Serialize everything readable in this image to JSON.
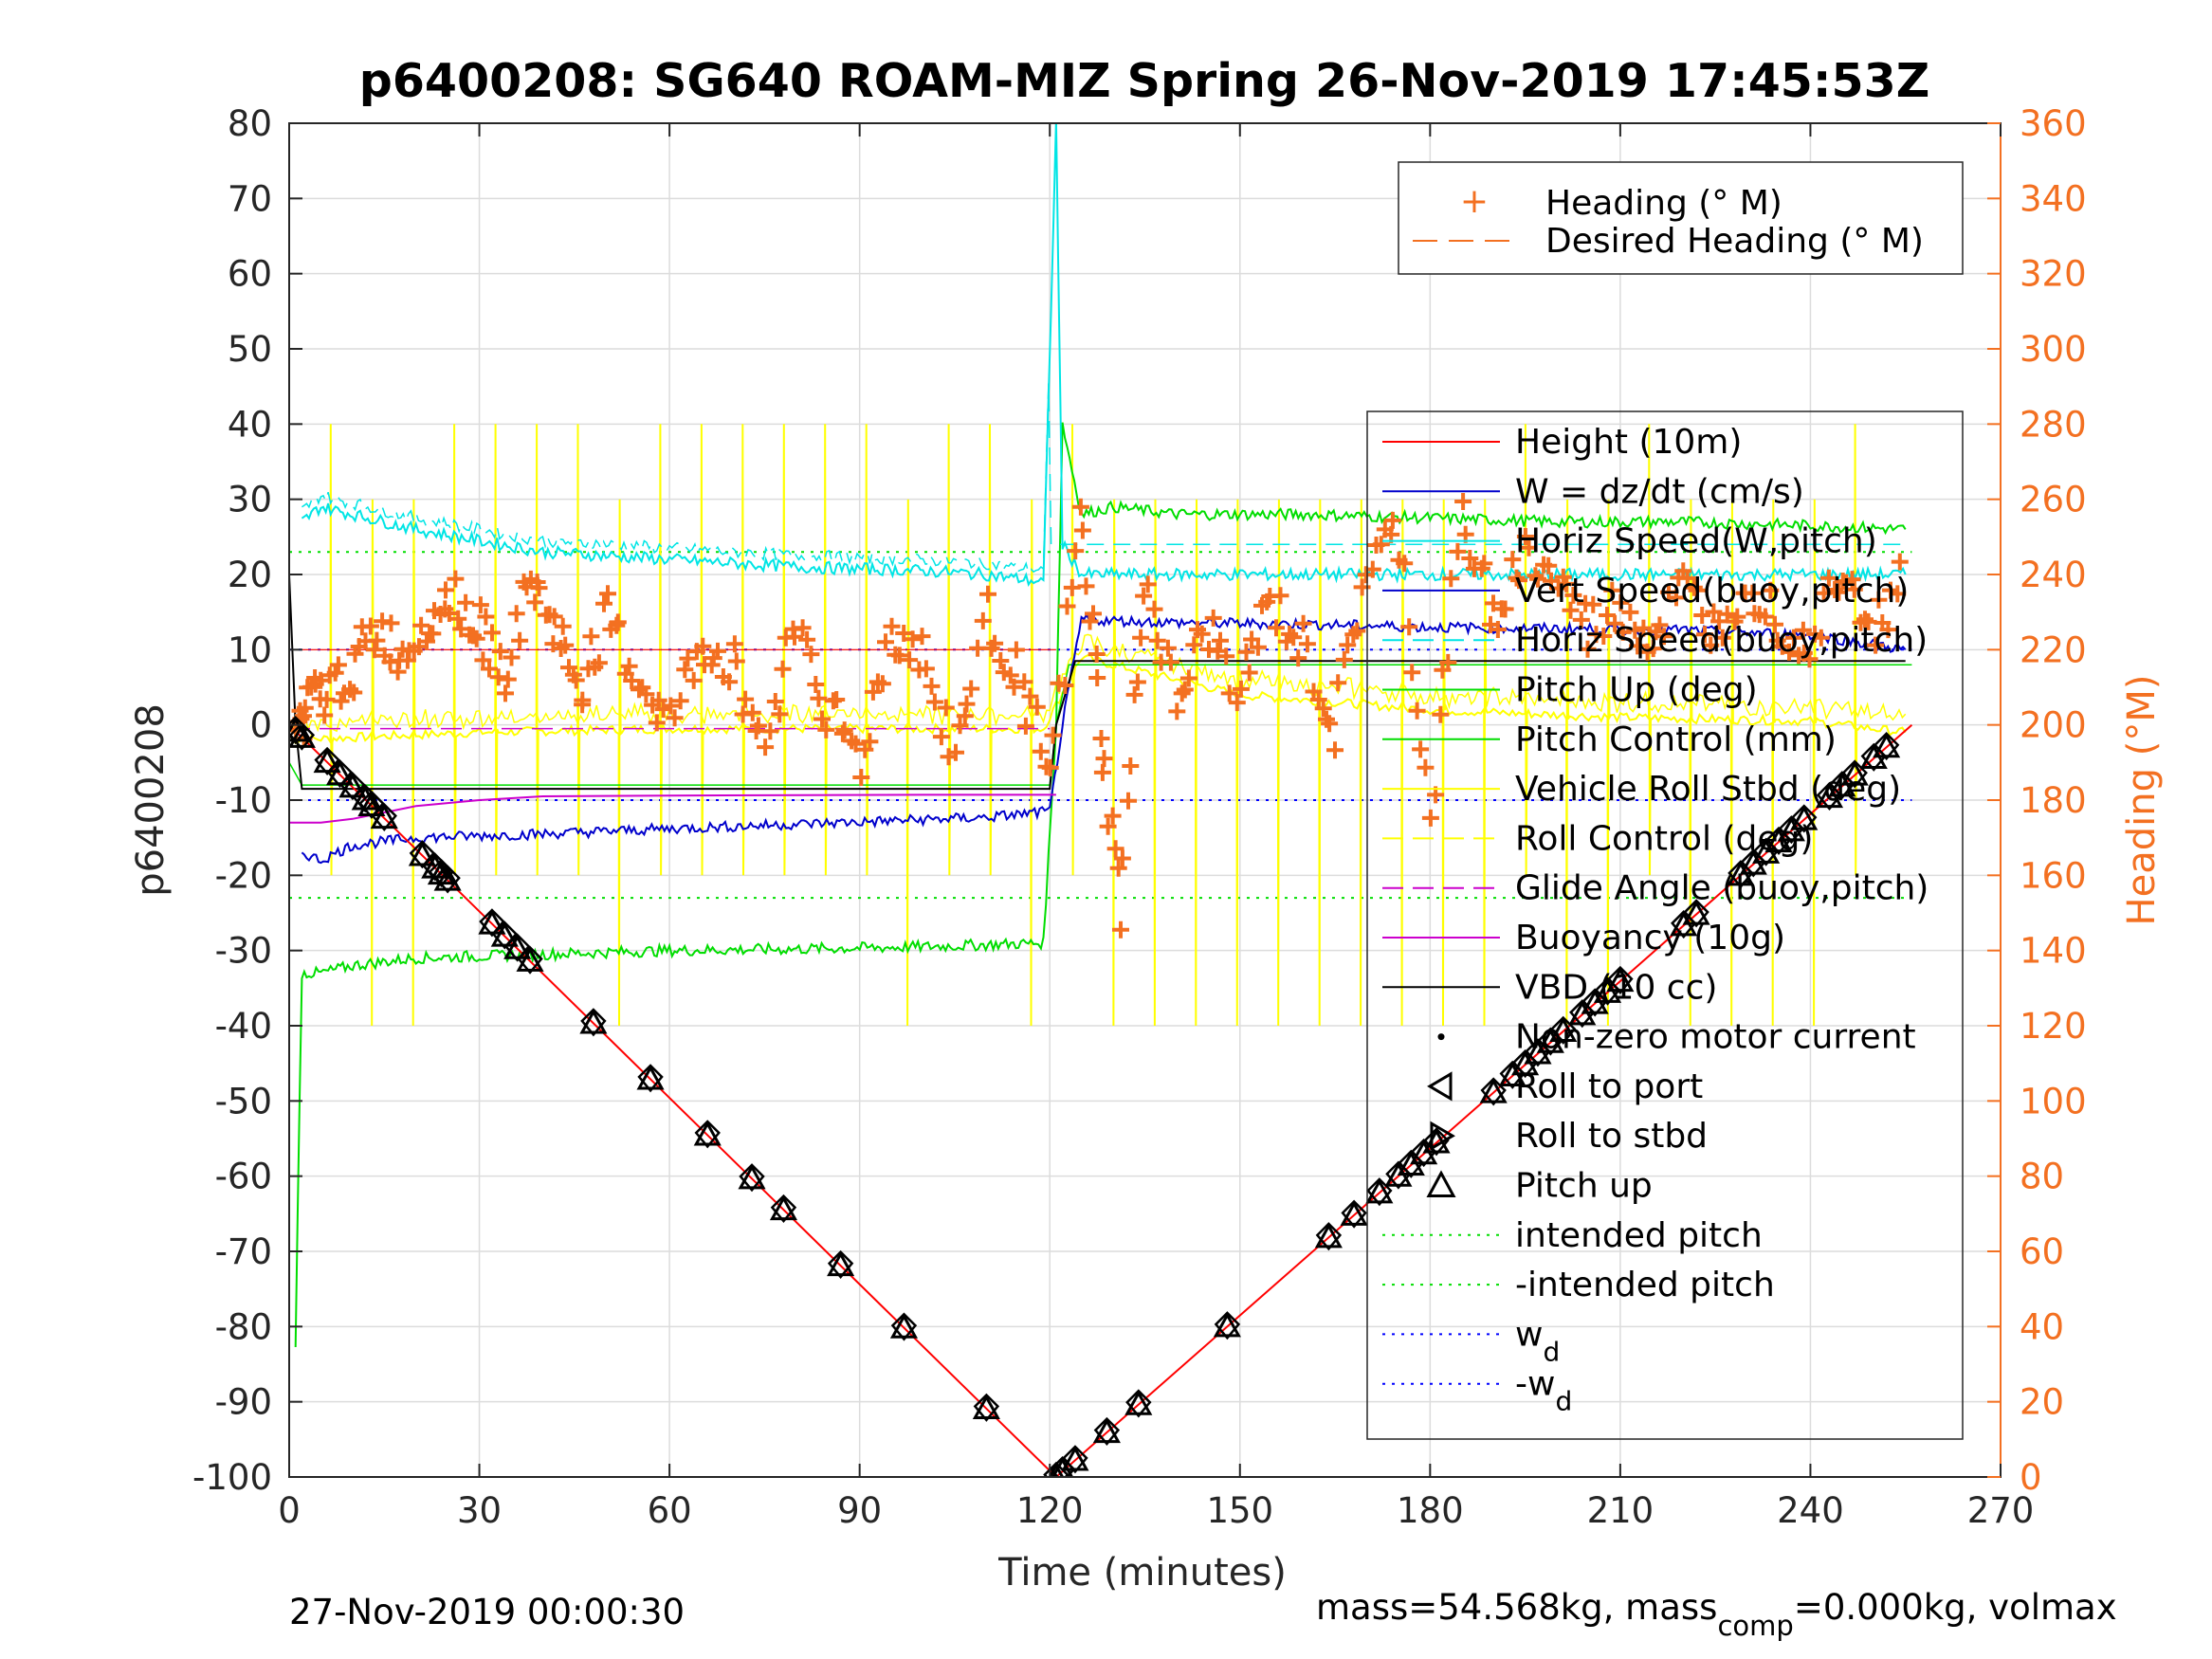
{
  "chart_data": {
    "type": "line",
    "title": "p6400208: SG640 ROAM-MIZ Spring 26-Nov-2019 17:45:53Z",
    "xlabel": "Time (minutes)",
    "ylabel": "p6400208",
    "ylabel_right": "Heading (°M)",
    "xlim": [
      0,
      270
    ],
    "ylim": [
      -100,
      80
    ],
    "ylim_right": [
      0,
      360
    ],
    "x_ticks": [
      "0",
      "30",
      "60",
      "90",
      "120",
      "150",
      "180",
      "210",
      "240",
      "270"
    ],
    "y_ticks": [
      "80",
      "70",
      "60",
      "50",
      "40",
      "30",
      "20",
      "10",
      "0",
      "-10",
      "-20",
      "-30",
      "-40",
      "-50",
      "-60",
      "-70",
      "-80",
      "-90",
      "-100"
    ],
    "y_ticks_right": [
      "360",
      "340",
      "320",
      "300",
      "280",
      "260",
      "240",
      "220",
      "200",
      "180",
      "160",
      "140",
      "120",
      "100",
      "80",
      "60",
      "40",
      "20",
      "0"
    ],
    "grid": true,
    "colors": {
      "height": "#ff0000",
      "w": "#0000cc",
      "horiz_speed": "#00e5e5",
      "pitch": "#00dd00",
      "roll": "#ffff00",
      "buoyancy": "#cc00cc",
      "vbd": "#000000",
      "heading": "#f37021",
      "w_d": "#0000ff"
    },
    "legend_top": {
      "placement": "top-right",
      "entries": [
        "Heading (° M)",
        "Desired Heading (° M)"
      ]
    },
    "legend_main": {
      "placement": "right",
      "entries": [
        "Height (10m)",
        "W = dz/dt (cm/s)",
        "Horiz Speed(W,pitch)",
        "Vert Speed(buoy,pitch)",
        "Horiz Speed(buoy,pitch)",
        "Pitch Up (deg)",
        "Pitch Control (mm)",
        "Vehicle Roll Stbd (deg)",
        "Roll Control (deg)",
        "Glide Angle (buoy,pitch)",
        "Buoyancy (10g)",
        "VBD (10 cc)",
        "Non-zero motor current",
        "Roll to port",
        "Roll to stbd",
        "Pitch up",
        "intended pitch",
        "-intended pitch",
        "wd",
        "-wd"
      ]
    },
    "series": [
      {
        "name": "Height (10m)",
        "x": [
          0,
          121,
          256
        ],
        "y": [
          0,
          -100,
          0
        ]
      },
      {
        "name": "W = dz/dt (cm/s)",
        "x": [
          2,
          5,
          10,
          20,
          40,
          60,
          80,
          100,
          110,
          120,
          122,
          125,
          140,
          160,
          180,
          200,
          220,
          240,
          255
        ],
        "y": [
          -17,
          -18,
          -16,
          -15,
          -14.5,
          -13.8,
          -13.2,
          -12.6,
          -12.3,
          -11.5,
          0,
          14,
          13.6,
          13.4,
          13,
          12.8,
          12.6,
          12,
          10
        ]
      },
      {
        "name": "Horiz Speed(W,pitch)",
        "x": [
          2,
          5,
          10,
          20,
          40,
          60,
          80,
          100,
          110,
          119,
          121,
          122,
          125,
          140,
          160,
          180,
          200,
          220,
          240,
          255
        ],
        "y": [
          27,
          29,
          28,
          26,
          23,
          22,
          21,
          20.5,
          20,
          19,
          80,
          24,
          20,
          20,
          20,
          20,
          20,
          20,
          20,
          20
        ]
      },
      {
        "name": "Pitch Up (deg)",
        "x": [
          1,
          2,
          5,
          10,
          20,
          40,
          60,
          80,
          100,
          119,
          121,
          122,
          125,
          130,
          140,
          160,
          180,
          200,
          220,
          240,
          255
        ],
        "y": [
          -82,
          -33,
          -33,
          -32,
          -31,
          -30.5,
          -30,
          -29.8,
          -29.5,
          -29,
          0,
          40,
          28,
          29,
          28,
          28,
          27.5,
          27,
          27,
          26.5,
          26
        ]
      },
      {
        "name": "Roll Control (deg)",
        "x": [
          0,
          30,
          60,
          90,
          119,
          125,
          150,
          180,
          210,
          240,
          255
        ],
        "y": [
          -2,
          -1,
          -0.5,
          -0.5,
          -0.5,
          9,
          4,
          2,
          1,
          0.5,
          -1
        ]
      },
      {
        "name": "Buoyancy (10g)",
        "x": [
          0,
          5,
          10,
          20,
          30,
          40,
          60,
          100,
          121
        ],
        "y": [
          -13,
          -13,
          -12.5,
          -10.8,
          -10,
          -9.5,
          -9.4,
          -9.3,
          -9.3
        ]
      },
      {
        "name": "VBD (10 cc)",
        "x": [
          0,
          1,
          2,
          60,
          120,
          121,
          124,
          125,
          200,
          255
        ],
        "y": [
          20,
          0,
          -8.5,
          -8.5,
          -8.5,
          0,
          8.5,
          8.5,
          8.5,
          8.5
        ]
      },
      {
        "name": "Heading (° M)",
        "x": [
          1,
          3,
          6,
          10,
          14,
          18,
          22,
          26,
          30,
          34,
          38,
          42,
          46,
          50,
          55,
          60,
          65,
          70,
          75,
          80,
          85,
          90,
          95,
          100,
          105,
          110,
          115,
          120,
          125,
          128,
          131,
          135,
          140,
          145,
          150,
          155,
          160,
          165,
          170,
          175,
          180,
          185,
          190,
          195,
          200,
          205,
          210,
          215,
          220,
          225,
          230,
          235,
          240,
          245,
          250,
          255
        ],
        "y": [
          198,
          205,
          208,
          215,
          225,
          218,
          230,
          235,
          225,
          215,
          238,
          225,
          210,
          228,
          212,
          200,
          222,
          215,
          195,
          228,
          205,
          190,
          225,
          218,
          192,
          228,
          215,
          185,
          255,
          200,
          150,
          240,
          205,
          225,
          210,
          232,
          220,
          198,
          242,
          250,
          175,
          255,
          230,
          245,
          238,
          225,
          232,
          222,
          236,
          225,
          240,
          228,
          222,
          245,
          225,
          240
        ]
      },
      {
        "name": "intended pitch",
        "x": [
          0,
          256
        ],
        "y": [
          23,
          23
        ]
      },
      {
        "name": "-intended pitch",
        "x": [
          0,
          256
        ],
        "y": [
          -23,
          -23
        ]
      },
      {
        "name": "wd",
        "x": [
          0,
          256
        ],
        "y": [
          10,
          10
        ]
      },
      {
        "name": "-wd",
        "x": [
          0,
          256
        ],
        "y": [
          -10,
          -10
        ]
      }
    ],
    "markers_pitch_up_minutes": [
      1,
      2,
      6,
      8,
      10,
      12,
      13,
      15,
      21,
      23,
      24,
      25,
      32,
      34,
      36,
      38,
      48,
      57,
      66,
      73,
      78,
      87,
      97,
      110,
      121,
      122,
      124,
      129,
      134,
      148,
      164,
      168,
      172,
      175,
      177,
      179,
      181,
      190,
      193,
      195,
      197,
      199,
      201,
      204,
      206,
      208,
      210,
      220,
      222,
      229,
      231,
      233,
      235,
      237,
      239,
      243,
      245,
      247,
      250,
      252
    ]
  },
  "footer": {
    "left": "27-Nov-2019 00:00:30",
    "right_a": "mass=54.568kg, mass",
    "right_sub": "comp",
    "right_b": "=0.000kg, volmax"
  },
  "legend_wd_main": "w",
  "legend_wd_sub": "d",
  "legend_mwd_main": "-w",
  "legend_mwd_sub": "d"
}
